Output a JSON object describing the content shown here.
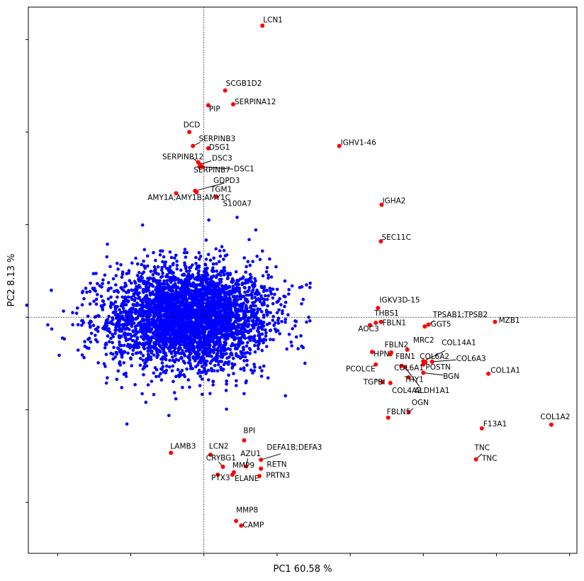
{
  "chart_data": {
    "type": "scatter",
    "title": "",
    "xlabel": "PC1 60.58 %",
    "ylabel": "PC2 8.13 %",
    "xlim": [
      -2.4,
      5.1
    ],
    "ylim": [
      -5.1,
      6.7
    ],
    "x_ticks": [
      -2,
      -1,
      0,
      1,
      2,
      3,
      4,
      5
    ],
    "y_ticks": [
      -4,
      -2,
      0,
      2,
      4,
      6
    ],
    "tick_labels_visible": false,
    "crosshair": {
      "x": 0,
      "y": 0
    },
    "grid": false,
    "colors": {
      "background": "#e8f0fb",
      "cloud": "#0000ff",
      "highlight": "#ff0000"
    },
    "cloud": {
      "n": 3800,
      "center": [
        -0.2,
        0.0
      ],
      "sd": [
        0.55,
        0.55
      ]
    },
    "highlighted": [
      {
        "name": "LCN1",
        "x": 0.8,
        "y": 6.3
      },
      {
        "name": "SCGB1D2",
        "x": 0.29,
        "y": 4.9
      },
      {
        "name": "PIP",
        "x": 0.06,
        "y": 4.58
      },
      {
        "name": "SERPINA12",
        "x": 0.4,
        "y": 4.6
      },
      {
        "name": "DCD",
        "x": -0.2,
        "y": 4.0
      },
      {
        "name": "SERPINB3",
        "x": -0.15,
        "y": 3.7
      },
      {
        "name": "DSG1",
        "x": 0.06,
        "y": 3.65
      },
      {
        "name": "SERPINB12",
        "x": -0.08,
        "y": 3.35
      },
      {
        "name": "DSC3",
        "x": -0.05,
        "y": 3.3
      },
      {
        "name": "SERPINB7",
        "x": -0.06,
        "y": 3.25
      },
      {
        "name": "DSC1",
        "x": -0.02,
        "y": 3.25
      },
      {
        "name": "GDPD3",
        "x": -0.12,
        "y": 2.73
      },
      {
        "name": "TGM1",
        "x": -0.1,
        "y": 2.7
      },
      {
        "name": "AMY1A;AMY1B;AMY1C",
        "x": -0.38,
        "y": 2.68
      },
      {
        "name": "S100A7",
        "x": 0.17,
        "y": 2.6
      },
      {
        "name": "IGHV1-46",
        "x": 1.85,
        "y": 3.7
      },
      {
        "name": "IGHA2",
        "x": 2.43,
        "y": 2.43
      },
      {
        "name": "SEC11C",
        "x": 2.42,
        "y": 1.64
      },
      {
        "name": "IGKV3D-15",
        "x": 2.38,
        "y": 0.2
      },
      {
        "name": "THBS1",
        "x": 2.35,
        "y": -0.12
      },
      {
        "name": "FBLN1",
        "x": 2.42,
        "y": -0.1
      },
      {
        "name": "AOC3",
        "x": 2.27,
        "y": -0.17
      },
      {
        "name": "TPSAB1;TPSB2",
        "x": 3.07,
        "y": -0.16
      },
      {
        "name": "GGT5",
        "x": 3.02,
        "y": -0.2
      },
      {
        "name": "MZB1",
        "x": 3.98,
        "y": -0.1
      },
      {
        "name": "MRC2",
        "x": 2.78,
        "y": -0.7
      },
      {
        "name": "FBLN2",
        "x": 2.56,
        "y": -0.76
      },
      {
        "name": "HPN",
        "x": 2.3,
        "y": -0.75
      },
      {
        "name": "FBN1",
        "x": 2.55,
        "y": -0.8
      },
      {
        "name": "COL14A1",
        "x": 3.0,
        "y": -0.95
      },
      {
        "name": "COL6A2",
        "x": 3.03,
        "y": -0.97
      },
      {
        "name": "COL6A3",
        "x": 3.12,
        "y": -0.96
      },
      {
        "name": "POSTN",
        "x": 3.0,
        "y": -1.02
      },
      {
        "name": "PCOLCE",
        "x": 2.35,
        "y": -1.02
      },
      {
        "name": "COL6A1",
        "x": 2.7,
        "y": -1.05
      },
      {
        "name": "THY1",
        "x": 2.75,
        "y": -1.08
      },
      {
        "name": "BGN",
        "x": 3.0,
        "y": -1.2
      },
      {
        "name": "TGFBI",
        "x": 2.44,
        "y": -1.4
      },
      {
        "name": "COL4A2",
        "x": 2.55,
        "y": -1.42
      },
      {
        "name": "ALDH1A1",
        "x": 2.8,
        "y": -1.3
      },
      {
        "name": "COL1A1",
        "x": 3.89,
        "y": -1.22
      },
      {
        "name": "OGN",
        "x": 2.8,
        "y": -2.05
      },
      {
        "name": "FBLN5",
        "x": 2.52,
        "y": -2.17
      },
      {
        "name": "COL1A2",
        "x": 4.75,
        "y": -2.32
      },
      {
        "name": "F13A1",
        "x": 3.8,
        "y": -2.4
      },
      {
        "name": "TNC",
        "x": 3.72,
        "y": -3.07
      },
      {
        "name": "BPI",
        "x": 0.55,
        "y": -2.66
      },
      {
        "name": "LAMB3",
        "x": -0.45,
        "y": -2.93
      },
      {
        "name": "LCN2",
        "x": 0.09,
        "y": -2.97
      },
      {
        "name": "CRYBG1",
        "x": 0.26,
        "y": -3.23
      },
      {
        "name": "AZU1",
        "x": 0.58,
        "y": -3.22
      },
      {
        "name": "DEFA1B;DEFA3",
        "x": 0.78,
        "y": -3.08
      },
      {
        "name": "MMP9",
        "x": 0.41,
        "y": -3.35
      },
      {
        "name": "RETN",
        "x": 0.78,
        "y": -3.27
      },
      {
        "name": "PTX3",
        "x": 0.19,
        "y": -3.4
      },
      {
        "name": "ELANE",
        "x": 0.39,
        "y": -3.4
      },
      {
        "name": "PRTN3",
        "x": 0.76,
        "y": -3.43
      },
      {
        "name": "MMP8",
        "x": 0.44,
        "y": -4.4
      },
      {
        "name": "CAMP",
        "x": 0.51,
        "y": -4.5
      }
    ],
    "labels": [
      {
        "text": "LCN1",
        "x": 0.81,
        "y": 6.37
      },
      {
        "text": "SCGB1D2",
        "x": 0.3,
        "y": 5.0
      },
      {
        "text": "PIP",
        "x": 0.07,
        "y": 4.45
      },
      {
        "text": "SERPINA12",
        "x": 0.42,
        "y": 4.6
      },
      {
        "text": "DCD",
        "x": -0.28,
        "y": 4.1
      },
      {
        "text": "SERPINB3",
        "x": -0.07,
        "y": 3.8
      },
      {
        "text": "DSG1",
        "x": 0.07,
        "y": 3.62
      },
      {
        "text": "SERPINB12",
        "x": -0.57,
        "y": 3.41
      },
      {
        "text": "DSC3",
        "x": 0.11,
        "y": 3.38
      },
      {
        "text": "SERPINB7",
        "x": -0.14,
        "y": 3.13
      },
      {
        "text": "DSC1",
        "x": 0.41,
        "y": 3.15
      },
      {
        "text": "GDPD3",
        "x": 0.13,
        "y": 2.9
      },
      {
        "text": "TGM1",
        "x": 0.09,
        "y": 2.71
      },
      {
        "text": "AMY1A;AMY1B;AMY1C",
        "x": -0.77,
        "y": 2.53
      },
      {
        "text": "S100A7",
        "x": 0.26,
        "y": 2.4
      },
      {
        "text": "IGHV1-46",
        "x": 1.87,
        "y": 3.72
      },
      {
        "text": "IGHA2",
        "x": 2.44,
        "y": 2.46
      },
      {
        "text": "SEC11C",
        "x": 2.43,
        "y": 1.67
      },
      {
        "text": "IGKV3D-15",
        "x": 2.4,
        "y": 0.32
      },
      {
        "text": "THBS1",
        "x": 2.33,
        "y": 0.03
      },
      {
        "text": "FBLN1",
        "x": 2.44,
        "y": -0.17
      },
      {
        "text": "AOC3",
        "x": 2.11,
        "y": -0.3
      },
      {
        "text": "TPSAB1;TPSB2",
        "x": 3.13,
        "y": 0.0
      },
      {
        "text": "GGT5",
        "x": 3.1,
        "y": -0.2
      },
      {
        "text": "MZB1",
        "x": 4.03,
        "y": -0.12
      },
      {
        "text": "MRC2",
        "x": 2.86,
        "y": -0.55
      },
      {
        "text": "FBLN2",
        "x": 2.47,
        "y": -0.65
      },
      {
        "text": "HPN",
        "x": 2.32,
        "y": -0.85
      },
      {
        "text": "FBN1",
        "x": 2.62,
        "y": -0.9
      },
      {
        "text": "COL14A1",
        "x": 3.25,
        "y": -0.6
      },
      {
        "text": "COL6A2",
        "x": 2.95,
        "y": -0.9
      },
      {
        "text": "COL6A3",
        "x": 3.45,
        "y": -0.95
      },
      {
        "text": "POSTN",
        "x": 3.03,
        "y": -1.13
      },
      {
        "text": "PCOLCE",
        "x": 1.94,
        "y": -1.17
      },
      {
        "text": "COL6A1",
        "x": 2.6,
        "y": -1.15
      },
      {
        "text": "THY1",
        "x": 2.74,
        "y": -1.4
      },
      {
        "text": "BGN",
        "x": 3.27,
        "y": -1.33
      },
      {
        "text": "TGFBI",
        "x": 2.18,
        "y": -1.45
      },
      {
        "text": "COL4A2",
        "x": 2.57,
        "y": -1.64
      },
      {
        "text": "ALDH1A1",
        "x": 2.88,
        "y": -1.64
      },
      {
        "text": "COL1A1",
        "x": 3.92,
        "y": -1.2
      },
      {
        "text": "OGN",
        "x": 2.84,
        "y": -1.9
      },
      {
        "text": "FBLN5",
        "x": 2.5,
        "y": -2.1
      },
      {
        "text": "COL1A2",
        "x": 4.6,
        "y": -2.2
      },
      {
        "text": "F13A1",
        "x": 3.82,
        "y": -2.36
      },
      {
        "text": "TNC",
        "x": 3.7,
        "y": -2.87
      },
      {
        "text": "TNC",
        "x": 3.8,
        "y": -3.1
      },
      {
        "text": "BPI",
        "x": 0.54,
        "y": -2.5
      },
      {
        "text": "LAMB3",
        "x": -0.46,
        "y": -2.84
      },
      {
        "text": "LCN2",
        "x": 0.07,
        "y": -2.84
      },
      {
        "text": "CRYBG1",
        "x": 0.03,
        "y": -3.09
      },
      {
        "text": "AZU1",
        "x": 0.5,
        "y": -3.0
      },
      {
        "text": "DEFA1B;DEFA3",
        "x": 0.86,
        "y": -2.86
      },
      {
        "text": "MMP9",
        "x": 0.39,
        "y": -3.25
      },
      {
        "text": "RETN",
        "x": 0.86,
        "y": -3.23
      },
      {
        "text": "PTX3",
        "x": 0.1,
        "y": -3.52
      },
      {
        "text": "ELANE",
        "x": 0.42,
        "y": -3.54
      },
      {
        "text": "PRTN3",
        "x": 0.85,
        "y": -3.47
      },
      {
        "text": "MMP8",
        "x": 0.44,
        "y": -4.22
      },
      {
        "text": "CAMP",
        "x": 0.53,
        "y": -4.54
      }
    ],
    "connectors": [
      {
        "from": [
          -0.15,
          3.7
        ],
        "to": [
          -0.05,
          3.78
        ]
      },
      {
        "from": [
          -0.08,
          3.35
        ],
        "to": [
          -0.15,
          3.43
        ]
      },
      {
        "from": [
          -0.05,
          3.3
        ],
        "to": [
          0.1,
          3.38
        ]
      },
      {
        "from": [
          -0.02,
          3.25
        ],
        "to": [
          0.4,
          3.2
        ]
      },
      {
        "from": [
          -0.12,
          2.73
        ],
        "to": [
          0.28,
          2.9
        ]
      },
      {
        "from": [
          1.85,
          3.7
        ],
        "to": [
          1.86,
          3.7
        ]
      },
      {
        "from": [
          2.27,
          -0.17
        ],
        "to": [
          2.3,
          -0.2
        ]
      },
      {
        "from": [
          3.07,
          -0.16
        ],
        "to": [
          3.15,
          -0.07
        ]
      },
      {
        "from": [
          3.0,
          -0.95
        ],
        "to": [
          3.3,
          -0.72
        ]
      },
      {
        "from": [
          3.12,
          -0.96
        ],
        "to": [
          3.45,
          -0.92
        ]
      },
      {
        "from": [
          3.0,
          -1.2
        ],
        "to": [
          3.27,
          -1.25
        ]
      },
      {
        "from": [
          2.75,
          -1.08
        ],
        "to": [
          2.95,
          -1.5
        ]
      },
      {
        "from": [
          2.44,
          -1.4
        ],
        "to": [
          2.35,
          -1.35
        ]
      },
      {
        "from": [
          2.8,
          -2.05
        ],
        "to": [
          2.86,
          -1.97
        ]
      },
      {
        "from": [
          3.72,
          -3.07
        ],
        "to": [
          3.8,
          -2.95
        ]
      },
      {
        "from": [
          0.78,
          -3.08
        ],
        "to": [
          1.05,
          -2.95
        ]
      },
      {
        "from": [
          0.58,
          -3.22
        ],
        "to": [
          0.6,
          -3.05
        ]
      },
      {
        "from": [
          0.26,
          -3.23
        ],
        "to": [
          0.2,
          -3.12
        ]
      }
    ]
  }
}
